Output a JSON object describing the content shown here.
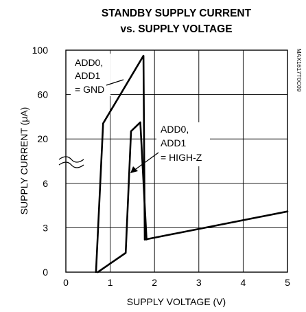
{
  "chart_data": {
    "type": "line",
    "title_line1": "STANDBY SUPPLY CURRENT",
    "title_line2": "vs. SUPPLY VOLTAGE",
    "xlabel": "SUPPLY VOLTAGE (V)",
    "ylabel": "SUPPLY CURRENT (μA)",
    "xlim": [
      0,
      5
    ],
    "x_ticks": [
      0,
      1,
      2,
      3,
      4,
      5
    ],
    "y_tick_labels": [
      "0",
      "3",
      "6",
      "20",
      "60",
      "100"
    ],
    "y_axis_break": true,
    "grid": true,
    "part_number": "MAX1617T0C09",
    "series": [
      {
        "name": "ADD0, ADD1 = GND",
        "label_lines": [
          "ADD0,",
          "ADD1",
          "= GND"
        ],
        "points": [
          {
            "x": 0.68,
            "y": 0
          },
          {
            "x": 0.84,
            "y": 34
          },
          {
            "x": 1.75,
            "y": 95
          },
          {
            "x": 1.78,
            "y": 2.2
          },
          {
            "x": 5.0,
            "y": 4.1
          }
        ]
      },
      {
        "name": "ADD0, ADD1 = HIGH-Z",
        "label_lines": [
          "ADD0,",
          "ADD1",
          "= HIGH-Z"
        ],
        "points": [
          {
            "x": 0.72,
            "y": 0
          },
          {
            "x": 1.35,
            "y": 1.3
          },
          {
            "x": 1.47,
            "y": 27
          },
          {
            "x": 1.68,
            "y": 35
          },
          {
            "x": 1.82,
            "y": 2.2
          }
        ]
      }
    ]
  }
}
